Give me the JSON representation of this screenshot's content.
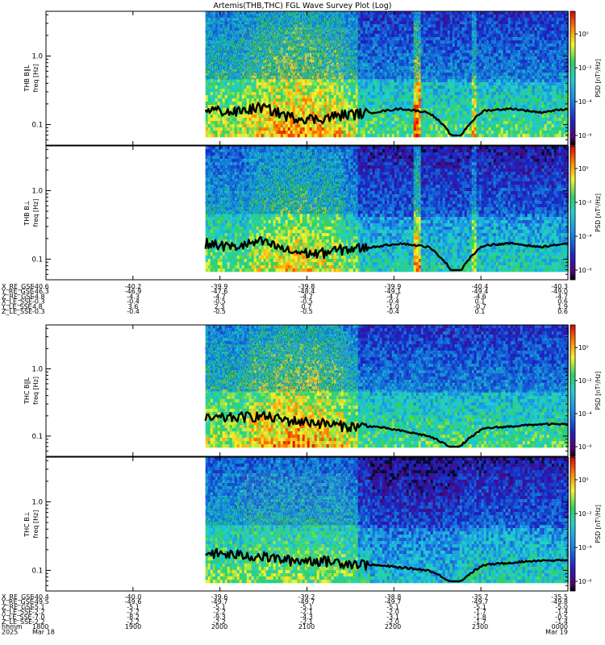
{
  "title": "Artemis(THB,THC) FGL Wave Survey Plot (Log)",
  "colors": {
    "background": "#ffffff",
    "spectrogram_low": "#1a2bb0",
    "spectrogram_mid": "#22c0d8",
    "spectrogram_high": "#f2f23a",
    "trace": "#000000"
  },
  "colorbar": {
    "label": "PSD [nT²/Hz]",
    "tick_labels": [
      "10⁰",
      "10⁻²",
      "10⁻⁴",
      "10⁻⁶"
    ],
    "colormap": "rainbow (black-purple-blue-cyan-green-yellow-orange-red)"
  },
  "chart_data": [
    {
      "type": "heatmap",
      "panel": "THB B∥L",
      "ylabel": "THB B∥L\nfreq [Hz]",
      "ylabel_line1": "THB B∥L",
      "ylabel_line2": "freq [Hz]",
      "yscale": "log",
      "yticks": [
        "1.0",
        "0.1"
      ],
      "ylim": [
        0.05,
        4.5
      ],
      "xlim": [
        "18:00",
        "24:00"
      ],
      "data_start": "19:50",
      "trace_y_approx": [
        0.17,
        0.15,
        0.18,
        0.13,
        0.12,
        0.14,
        0.15,
        0.17,
        0.15,
        0.05,
        0.16,
        0.17,
        0.15,
        0.17
      ]
    },
    {
      "type": "heatmap",
      "panel": "THB B⊥",
      "ylabel_line1": "THB B⊥",
      "ylabel_line2": "freq [Hz]",
      "yscale": "log",
      "yticks": [
        "1.0",
        "0.1"
      ],
      "ylim": [
        0.05,
        4.5
      ],
      "xlim": [
        "18:00",
        "24:00"
      ],
      "data_start": "19:50",
      "trace_y_approx": [
        0.17,
        0.15,
        0.18,
        0.13,
        0.12,
        0.14,
        0.15,
        0.17,
        0.15,
        0.05,
        0.16,
        0.17,
        0.15,
        0.17
      ]
    },
    {
      "type": "heatmap",
      "panel": "THC B∥L",
      "ylabel_line1": "THC B∥L",
      "ylabel_line2": "freq [Hz]",
      "yscale": "log",
      "yticks": [
        "1.0",
        "0.1"
      ],
      "ylim": [
        0.05,
        4.5
      ],
      "xlim": [
        "18:00",
        "24:00"
      ],
      "data_start": "19:50",
      "trace_y_approx": [
        0.18,
        0.19,
        0.2,
        0.17,
        0.16,
        0.14,
        0.14,
        0.12,
        0.1,
        0.06,
        0.13,
        0.14,
        0.15,
        0.15
      ]
    },
    {
      "type": "heatmap",
      "panel": "THC B⊥",
      "ylabel_line1": "THC B⊥",
      "ylabel_line2": "freq [Hz]",
      "yscale": "log",
      "yticks": [
        "1.0",
        "0.1"
      ],
      "ylim": [
        0.05,
        4.5
      ],
      "xlim": [
        "18:00",
        "24:00"
      ],
      "data_start": "19:50",
      "trace_y_approx": [
        0.18,
        0.17,
        0.16,
        0.14,
        0.14,
        0.13,
        0.12,
        0.11,
        0.1,
        0.06,
        0.12,
        0.13,
        0.14,
        0.14
      ]
    }
  ],
  "ephemeris_thb": {
    "labels": [
      "X_RE_GSE",
      "Y_RE_GSE",
      "Z_RE_GSE",
      "X_LE_SSE",
      "Y_LE_SSE",
      "Z_LE_SSE"
    ],
    "columns": [
      [
        "-40.6",
        "-46.3",
        "-4.8",
        "-0.3",
        "4.8",
        "-0.3"
      ],
      [
        "-40.2",
        "-46.9",
        "-4.3",
        "-0.4",
        "3.6",
        "-0.4"
      ],
      [
        "-39.9",
        "-47.6",
        "-4.7",
        "-0.5",
        "2.3",
        "-0.5"
      ],
      [
        "-39.8",
        "-48.4",
        "-4.7",
        "-0.5",
        "0.7",
        "-0.5"
      ],
      [
        "-39.9",
        "-49.1",
        "-4.7",
        "-0.4",
        "-1.0",
        "-0.4"
      ],
      [
        "-40.4",
        "-49.4",
        "-4.6",
        "0.1",
        "-0.7",
        "0.1"
      ],
      [
        "-40.3",
        "-49.0",
        "-4.7",
        "0.6",
        "1.9",
        "0.6"
      ]
    ]
  },
  "ephemeris_thc": {
    "labels": [
      "X_RE_GSE",
      "Y_RE_GSE",
      "Z_RE_GSE",
      "X_LE_SSE",
      "Y_LE_SSE",
      "Z_LE_SSE"
    ],
    "columns": [
      [
        "-40.4",
        "-49.5",
        "-5.1",
        "-2.2",
        "-7.0",
        "-2.2"
      ],
      [
        "-40.0",
        "-49.6",
        "-5.1",
        "-2.2",
        "-8.2",
        "-2.2"
      ],
      [
        "-39.6",
        "-49.7",
        "-5.1",
        "-2.2",
        "-9.3",
        "-2.2"
      ],
      [
        "-39.2",
        "-49.7",
        "-5.1",
        "-2.1",
        "-4.3",
        "-2.1"
      ],
      [
        "-38.8",
        "-49.7",
        "-5.1",
        "-2.0",
        "-3.1",
        "-2.0"
      ],
      [
        "-35.7",
        "-49.7",
        "-5.1",
        "-1.7",
        "-1.8",
        "-1.7"
      ],
      [
        "-35.5",
        "-49.8",
        "-5.0",
        "-1.4",
        "-0.5",
        "-1.4"
      ]
    ]
  },
  "time_axis": {
    "row_labels": [
      "hhmm",
      "2025"
    ],
    "ticks": [
      "1800",
      "1900",
      "2000",
      "2100",
      "2200",
      "2300",
      "0000"
    ],
    "date_start": "Mar 18",
    "date_end": "Mar 19"
  }
}
